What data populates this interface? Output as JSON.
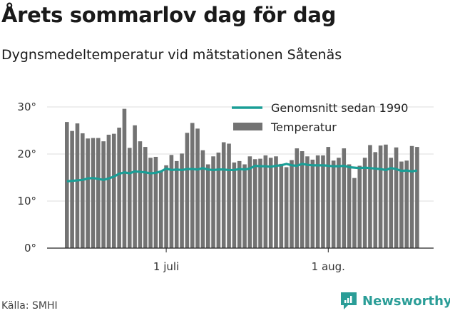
{
  "title": "Årets sommarlov dag för dag",
  "subtitle": "Dygnsmedeltemperatur vid mätstationen Såtenäs",
  "source": "Källa: SMHI",
  "brand": {
    "name": "Newsworthy",
    "icon": "newsworthy-logo-icon",
    "color": "#2a9d97"
  },
  "colors": {
    "bar": "#737373",
    "line": "#1a9e96",
    "axis": "#222222",
    "grid": "#dddddd"
  },
  "chart_data": {
    "type": "bar",
    "title": "Årets sommarlov dag för dag",
    "subtitle": "Dygnsmedeltemperatur vid mätstationen Såtenäs",
    "xlabel": "",
    "ylabel": "",
    "ylim": [
      0,
      30
    ],
    "y_ticks": [
      0,
      10,
      20,
      30
    ],
    "y_tick_labels": [
      "0°",
      "10°",
      "20°",
      "30°"
    ],
    "grid": false,
    "legend_position": "top-right",
    "x_ticks": [
      {
        "day_index": 19,
        "label": "1 juli"
      },
      {
        "day_index": 50,
        "label": "1 aug."
      }
    ],
    "series": [
      {
        "name": "Temperatur",
        "type": "bar",
        "values": [
          26.8,
          24.9,
          26.5,
          24.4,
          23.3,
          23.4,
          23.4,
          22.7,
          24.1,
          24.3,
          25.6,
          29.6,
          21.3,
          26.1,
          22.7,
          21.5,
          19.2,
          19.4,
          16.3,
          17.6,
          19.8,
          18.5,
          20.1,
          24.5,
          26.6,
          25.4,
          20.8,
          17.8,
          19.5,
          20.3,
          22.5,
          22.2,
          18.2,
          18.5,
          17.8,
          19.5,
          18.9,
          19.0,
          19.7,
          19.2,
          19.5,
          17.9,
          17.2,
          18.7,
          21.2,
          20.6,
          19.5,
          18.8,
          19.7,
          19.7,
          21.5,
          18.6,
          19.2,
          21.2,
          17.8,
          14.9,
          17.5,
          19.2,
          21.9,
          20.4,
          21.8,
          22.0,
          19.2,
          21.4,
          18.4,
          18.6,
          21.7,
          21.5
        ]
      },
      {
        "name": "Genomsnitt sedan 1990",
        "type": "line",
        "values": [
          14.2,
          14.3,
          14.4,
          14.5,
          14.8,
          14.9,
          14.7,
          14.5,
          14.8,
          15.2,
          15.8,
          16.1,
          15.9,
          16.3,
          16.2,
          16.1,
          15.9,
          16.0,
          16.3,
          16.9,
          16.6,
          16.7,
          16.6,
          16.8,
          16.8,
          16.7,
          17.0,
          16.7,
          16.6,
          16.7,
          16.7,
          16.6,
          16.6,
          16.8,
          16.7,
          16.9,
          17.5,
          17.4,
          17.4,
          17.3,
          17.5,
          17.6,
          17.9,
          17.6,
          17.5,
          17.9,
          17.7,
          17.6,
          17.6,
          17.6,
          17.5,
          17.4,
          17.4,
          17.5,
          17.2,
          17.1,
          17.0,
          17.1,
          17.0,
          16.9,
          16.8,
          16.6,
          17.0,
          16.8,
          16.4,
          16.5,
          16.3,
          16.5
        ]
      }
    ]
  }
}
